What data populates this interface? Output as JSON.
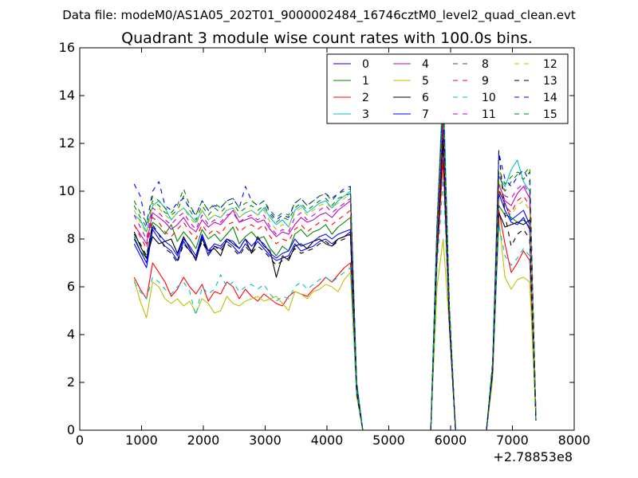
{
  "figure": {
    "suptitle": "Data file: modeM0/AS1A05_202T01_9000002484_16746cztM0_level2_quad_clean.evt"
  },
  "chart_data": {
    "type": "line",
    "title": "Quadrant 3 module wise count rates with 100.0s bins.",
    "xlabel": "",
    "ylabel": "",
    "x_offset_label": "+2.78853e8",
    "xlim": [
      0,
      8000
    ],
    "ylim": [
      0,
      16
    ],
    "xticks": [
      0,
      1000,
      2000,
      3000,
      4000,
      5000,
      6000,
      7000,
      8000
    ],
    "yticks": [
      0,
      2,
      4,
      6,
      8,
      10,
      12,
      14,
      16
    ],
    "legend_position": "top-right",
    "x": [
      880,
      980,
      1080,
      1180,
      1280,
      1380,
      1480,
      1580,
      1680,
      1780,
      1880,
      1980,
      2080,
      2180,
      2280,
      2380,
      2480,
      2580,
      2680,
      2780,
      2880,
      2980,
      3080,
      3180,
      3280,
      3380,
      3480,
      3580,
      3680,
      3780,
      3880,
      3980,
      4080,
      4180,
      4280,
      4380,
      4480,
      4580,
      4680,
      4780,
      4880,
      4980,
      5080,
      5180,
      5280,
      5380,
      5480,
      5580,
      5680,
      5780,
      5880,
      5980,
      6080,
      6180,
      6280,
      6380,
      6480,
      6580,
      6680,
      6780,
      6880,
      6980,
      7080,
      7180,
      7280,
      7380
    ],
    "series": [
      {
        "name": "0",
        "color": "#0000ff",
        "style": "solid",
        "values": [
          7.8,
          7.3,
          6.8,
          8.4,
          8.0,
          7.7,
          7.5,
          7.1,
          7.9,
          7.5,
          7.2,
          8.1,
          7.3,
          7.7,
          7.6,
          7.9,
          7.7,
          7.4,
          7.8,
          7.5,
          7.9,
          7.6,
          7.3,
          7.1,
          7.2,
          7.3,
          7.8,
          7.5,
          7.6,
          7.7,
          7.9,
          8.0,
          7.8,
          8.0,
          8.1,
          8.2,
          1.6,
          0.0,
          0.0,
          0.0,
          0.0,
          0.0,
          0.0,
          0.0,
          0.0,
          0.0,
          0.0,
          0.0,
          0.0,
          7.5,
          12.5,
          4.5,
          0.0,
          0.0,
          0.0,
          0.0,
          0.0,
          0.0,
          2.5,
          10.0,
          9.5,
          8.8,
          9.0,
          9.2,
          8.6,
          0.5
        ]
      },
      {
        "name": "1",
        "color": "#008000",
        "style": "solid",
        "values": [
          8.1,
          7.5,
          7.2,
          8.7,
          8.5,
          8.2,
          8.6,
          7.9,
          8.3,
          8.0,
          7.6,
          8.4,
          8.0,
          8.2,
          7.9,
          8.2,
          8.5,
          7.8,
          8.1,
          8.3,
          8.0,
          8.1,
          7.6,
          7.3,
          7.7,
          7.5,
          8.2,
          8.4,
          8.1,
          8.3,
          8.4,
          8.6,
          8.2,
          8.5,
          8.7,
          8.9,
          1.7,
          0.0,
          0.0,
          0.0,
          0.0,
          0.0,
          0.0,
          0.0,
          0.0,
          0.0,
          0.0,
          0.0,
          0.0,
          7.7,
          12.6,
          4.6,
          0.0,
          0.0,
          0.0,
          0.0,
          0.0,
          0.0,
          2.6,
          9.4,
          9.0,
          8.9,
          8.7,
          8.8,
          8.5,
          0.6
        ]
      },
      {
        "name": "2",
        "color": "#ff0000",
        "style": "solid",
        "values": [
          6.4,
          5.9,
          5.5,
          7.0,
          6.6,
          6.2,
          5.6,
          5.9,
          6.4,
          6.0,
          5.7,
          6.1,
          5.4,
          5.8,
          5.7,
          6.2,
          6.0,
          5.5,
          5.9,
          5.6,
          5.4,
          5.7,
          5.5,
          5.3,
          5.2,
          5.6,
          5.8,
          5.7,
          5.6,
          5.9,
          6.1,
          6.4,
          6.2,
          6.5,
          6.8,
          7.0,
          1.5,
          0.0,
          0.0,
          0.0,
          0.0,
          0.0,
          0.0,
          0.0,
          0.0,
          0.0,
          0.0,
          0.0,
          0.0,
          7.2,
          11.3,
          4.5,
          0.0,
          0.0,
          0.0,
          0.0,
          0.0,
          0.0,
          2.3,
          9.2,
          7.8,
          6.6,
          7.0,
          7.5,
          7.1,
          0.5
        ]
      },
      {
        "name": "3",
        "color": "#00bfbf",
        "style": "solid",
        "values": [
          9.0,
          8.8,
          8.3,
          9.4,
          9.6,
          9.3,
          8.8,
          9.1,
          9.3,
          9.0,
          8.7,
          9.2,
          8.8,
          9.0,
          8.9,
          9.2,
          9.3,
          8.9,
          9.1,
          9.2,
          9.0,
          9.3,
          8.9,
          8.6,
          8.8,
          8.5,
          9.2,
          9.4,
          9.1,
          9.3,
          9.5,
          9.6,
          9.3,
          9.6,
          9.8,
          10.0,
          2.0,
          0.0,
          0.0,
          0.0,
          0.0,
          0.0,
          0.0,
          0.0,
          0.0,
          0.0,
          0.0,
          0.0,
          0.0,
          8.6,
          14.7,
          5.2,
          0.0,
          0.0,
          0.0,
          0.0,
          0.0,
          0.0,
          2.8,
          10.6,
          10.2,
          10.9,
          11.3,
          10.4,
          10.0,
          0.6
        ]
      },
      {
        "name": "4",
        "color": "#bf00bf",
        "style": "solid",
        "values": [
          8.6,
          8.2,
          7.8,
          9.1,
          8.9,
          8.7,
          8.4,
          8.6,
          8.9,
          8.5,
          8.3,
          8.8,
          8.5,
          8.7,
          8.6,
          8.9,
          9.2,
          8.7,
          8.8,
          8.9,
          8.7,
          8.8,
          8.4,
          8.1,
          8.3,
          8.2,
          8.6,
          8.9,
          8.7,
          8.8,
          9.0,
          9.1,
          8.9,
          9.2,
          9.4,
          9.6,
          1.8,
          0.0,
          0.0,
          0.0,
          0.0,
          0.0,
          0.0,
          0.0,
          0.0,
          0.0,
          0.0,
          0.0,
          0.0,
          8.0,
          13.2,
          4.8,
          0.0,
          0.0,
          0.0,
          0.0,
          0.0,
          0.0,
          2.7,
          10.3,
          9.6,
          9.4,
          9.9,
          10.2,
          9.7,
          0.6
        ]
      },
      {
        "name": "5",
        "color": "#bfbf00",
        "style": "solid",
        "values": [
          6.3,
          5.4,
          4.7,
          6.2,
          6.0,
          5.5,
          5.3,
          5.5,
          5.2,
          5.4,
          4.9,
          5.5,
          5.3,
          4.9,
          5.0,
          5.6,
          5.3,
          5.2,
          5.4,
          5.5,
          5.6,
          5.4,
          5.5,
          5.6,
          5.3,
          5.0,
          5.8,
          5.7,
          5.5,
          5.8,
          5.9,
          6.1,
          6.0,
          5.8,
          6.3,
          6.6,
          1.4,
          0.0,
          0.0,
          0.0,
          0.0,
          0.0,
          0.0,
          0.0,
          0.0,
          0.0,
          0.0,
          0.0,
          0.0,
          6.0,
          8.0,
          4.3,
          0.0,
          0.0,
          0.0,
          0.0,
          0.0,
          0.0,
          2.1,
          8.8,
          6.4,
          5.9,
          6.3,
          6.4,
          6.2,
          0.5
        ]
      },
      {
        "name": "6",
        "color": "#000000",
        "style": "solid",
        "values": [
          8.3,
          7.7,
          7.2,
          8.1,
          7.8,
          7.9,
          8.0,
          7.4,
          8.1,
          7.6,
          7.1,
          8.0,
          7.5,
          7.6,
          7.3,
          8.0,
          7.8,
          7.6,
          8.0,
          7.4,
          8.1,
          7.7,
          7.5,
          6.4,
          7.3,
          7.1,
          7.7,
          7.8,
          7.6,
          7.9,
          8.0,
          7.8,
          7.7,
          8.0,
          8.1,
          8.3,
          1.6,
          0.0,
          0.0,
          0.0,
          0.0,
          0.0,
          0.0,
          0.0,
          0.0,
          0.0,
          0.0,
          0.0,
          0.0,
          7.6,
          12.0,
          4.4,
          0.0,
          0.0,
          0.0,
          0.0,
          0.0,
          0.0,
          2.4,
          9.1,
          8.5,
          8.6,
          8.7,
          8.6,
          8.8,
          0.4
        ]
      },
      {
        "name": "7",
        "color": "#0000ff",
        "style": "solid",
        "values": [
          8.0,
          7.5,
          7.0,
          8.5,
          8.2,
          7.9,
          7.7,
          7.3,
          8.0,
          7.7,
          7.3,
          8.2,
          7.5,
          7.8,
          7.7,
          8.0,
          7.9,
          7.6,
          8.0,
          7.7,
          8.0,
          7.8,
          7.4,
          7.2,
          7.4,
          7.5,
          8.0,
          7.7,
          7.8,
          7.9,
          8.1,
          8.2,
          8.0,
          8.2,
          8.3,
          8.4,
          1.7,
          0.0,
          0.0,
          0.0,
          0.0,
          0.0,
          0.0,
          0.0,
          0.0,
          0.0,
          0.0,
          0.0,
          0.0,
          7.7,
          12.7,
          4.6,
          0.0,
          0.0,
          0.0,
          0.0,
          0.0,
          0.0,
          2.6,
          9.9,
          9.2,
          8.7,
          8.6,
          8.9,
          8.4,
          0.5
        ]
      },
      {
        "name": "8",
        "color": "#008000",
        "style": "dashed",
        "values": [
          9.4,
          8.9,
          8.5,
          9.6,
          9.4,
          9.1,
          9.0,
          9.2,
          9.8,
          9.2,
          8.8,
          9.4,
          9.0,
          9.3,
          9.1,
          9.4,
          9.5,
          9.1,
          9.3,
          9.4,
          9.2,
          9.4,
          9.0,
          8.7,
          8.9,
          8.8,
          9.3,
          9.5,
          9.2,
          9.4,
          9.6,
          9.7,
          9.4,
          9.7,
          9.8,
          9.9,
          1.9,
          0.0,
          0.0,
          0.0,
          0.0,
          0.0,
          0.0,
          0.0,
          0.0,
          0.0,
          0.0,
          0.0,
          0.0,
          8.5,
          14.0,
          5.1,
          0.0,
          0.0,
          0.0,
          0.0,
          0.0,
          0.0,
          2.8,
          10.7,
          10.0,
          10.4,
          10.7,
          10.5,
          10.8,
          0.6
        ]
      },
      {
        "name": "9",
        "color": "#ff0000",
        "style": "dashed",
        "values": [
          8.6,
          8.1,
          7.6,
          8.9,
          8.7,
          8.3,
          8.1,
          8.4,
          8.7,
          8.3,
          8.0,
          8.6,
          8.2,
          8.4,
          8.2,
          8.6,
          8.7,
          8.3,
          8.5,
          8.6,
          8.4,
          8.6,
          8.1,
          7.8,
          8.0,
          7.9,
          8.4,
          8.6,
          8.3,
          8.5,
          8.7,
          8.8,
          8.6,
          8.8,
          9.0,
          9.2,
          1.7,
          0.0,
          0.0,
          0.0,
          0.0,
          0.0,
          0.0,
          0.0,
          0.0,
          0.0,
          0.0,
          0.0,
          0.0,
          7.9,
          12.9,
          4.7,
          0.0,
          0.0,
          0.0,
          0.0,
          0.0,
          0.0,
          2.6,
          10.1,
          9.4,
          9.1,
          9.6,
          9.8,
          9.4,
          0.5
        ]
      },
      {
        "name": "10",
        "color": "#00bfbf",
        "style": "dashed",
        "values": [
          6.2,
          5.8,
          5.5,
          6.4,
          6.2,
          5.9,
          5.7,
          6.0,
          6.2,
          5.8,
          4.8,
          6.0,
          5.7,
          5.9,
          6.5,
          6.0,
          6.2,
          5.8,
          6.0,
          6.1,
          5.9,
          6.1,
          5.7,
          5.4,
          5.6,
          5.5,
          6.0,
          6.2,
          5.9,
          6.1,
          6.3,
          6.4,
          6.2,
          6.4,
          6.6,
          6.8,
          1.5,
          0.0,
          0.0,
          0.0,
          0.0,
          0.0,
          0.0,
          0.0,
          0.0,
          0.0,
          0.0,
          0.0,
          0.0,
          6.8,
          10.5,
          4.6,
          0.0,
          0.0,
          0.0,
          0.0,
          0.0,
          0.0,
          2.3,
          8.6,
          7.3,
          6.9,
          7.2,
          7.6,
          7.3,
          0.5
        ]
      },
      {
        "name": "11",
        "color": "#bf00bf",
        "style": "dashed",
        "values": [
          9.0,
          8.5,
          8.0,
          9.3,
          9.1,
          8.8,
          8.6,
          8.9,
          9.1,
          8.7,
          8.4,
          9.0,
          8.6,
          8.8,
          8.7,
          9.0,
          9.1,
          8.7,
          8.9,
          9.0,
          8.8,
          9.0,
          8.5,
          8.2,
          8.4,
          8.3,
          8.9,
          9.1,
          8.8,
          9.0,
          9.2,
          9.4,
          9.1,
          9.3,
          9.5,
          9.7,
          1.8,
          0.0,
          0.0,
          0.0,
          0.0,
          0.0,
          0.0,
          0.0,
          0.0,
          0.0,
          0.0,
          0.0,
          0.0,
          8.2,
          13.5,
          4.9,
          0.0,
          0.0,
          0.0,
          0.0,
          0.0,
          0.0,
          2.7,
          10.8,
          9.8,
          9.7,
          10.1,
          10.3,
          9.9,
          0.6
        ]
      },
      {
        "name": "12",
        "color": "#bfbf00",
        "style": "dashed",
        "values": [
          9.2,
          8.7,
          8.2,
          9.5,
          9.3,
          9.0,
          8.8,
          9.1,
          9.3,
          8.9,
          8.6,
          9.2,
          8.8,
          9.0,
          8.9,
          9.2,
          9.3,
          8.9,
          9.1,
          9.2,
          9.0,
          9.2,
          8.7,
          8.4,
          8.6,
          8.5,
          9.1,
          9.3,
          9.0,
          9.2,
          9.4,
          9.5,
          9.3,
          9.5,
          9.7,
          9.9,
          1.9,
          0.0,
          0.0,
          0.0,
          0.0,
          0.0,
          0.0,
          0.0,
          0.0,
          0.0,
          0.0,
          0.0,
          0.0,
          8.3,
          13.8,
          5.0,
          0.0,
          0.0,
          0.0,
          0.0,
          0.0,
          0.0,
          2.7,
          10.5,
          9.3,
          9.0,
          9.4,
          9.6,
          9.2,
          0.6
        ]
      },
      {
        "name": "13",
        "color": "#000000",
        "style": "dashed",
        "values": [
          8.2,
          7.8,
          7.3,
          8.6,
          8.2,
          7.6,
          7.4,
          7.0,
          7.8,
          7.5,
          7.2,
          7.9,
          7.4,
          7.7,
          7.5,
          7.8,
          7.6,
          7.3,
          7.7,
          7.4,
          7.7,
          7.5,
          7.2,
          6.9,
          7.1,
          7.2,
          7.6,
          7.4,
          7.5,
          7.6,
          7.8,
          7.9,
          7.7,
          7.9,
          8.0,
          8.2,
          1.6,
          0.0,
          0.0,
          0.0,
          0.0,
          0.0,
          0.0,
          0.0,
          0.0,
          0.0,
          0.0,
          0.0,
          0.0,
          7.4,
          12.2,
          4.4,
          0.0,
          0.0,
          0.0,
          0.0,
          0.0,
          0.0,
          2.5,
          11.7,
          9.0,
          7.7,
          8.2,
          8.4,
          8.0,
          0.4
        ]
      },
      {
        "name": "14",
        "color": "#0000ff",
        "style": "dashed",
        "values": [
          10.3,
          9.8,
          8.6,
          10.0,
          10.4,
          9.4,
          9.2,
          9.5,
          9.7,
          9.3,
          9.0,
          9.6,
          9.2,
          9.4,
          9.3,
          9.6,
          9.7,
          9.3,
          10.2,
          9.6,
          9.4,
          9.6,
          9.1,
          8.8,
          9.0,
          8.9,
          9.5,
          9.7,
          9.4,
          9.6,
          9.8,
          9.9,
          9.7,
          9.9,
          10.1,
          10.2,
          2.0,
          0.0,
          0.0,
          0.0,
          0.0,
          0.0,
          0.0,
          0.0,
          0.0,
          0.0,
          0.0,
          0.0,
          0.0,
          8.7,
          13.9,
          5.1,
          0.0,
          0.0,
          0.0,
          0.0,
          0.0,
          0.0,
          2.8,
          11.6,
          10.5,
          10.2,
          10.6,
          10.9,
          10.4,
          0.6
        ]
      },
      {
        "name": "15",
        "color": "#008000",
        "style": "dashed",
        "values": [
          9.6,
          9.1,
          8.7,
          9.8,
          9.6,
          9.3,
          9.1,
          9.4,
          10.1,
          9.4,
          9.0,
          9.6,
          9.2,
          9.5,
          9.3,
          9.6,
          9.7,
          9.3,
          9.5,
          9.6,
          9.4,
          9.6,
          9.2,
          8.9,
          9.1,
          9.0,
          9.5,
          9.7,
          9.4,
          9.6,
          9.8,
          9.9,
          9.6,
          9.9,
          10.0,
          10.1,
          2.0,
          0.0,
          0.0,
          0.0,
          0.0,
          0.0,
          0.0,
          0.0,
          0.0,
          0.0,
          0.0,
          0.0,
          0.0,
          8.6,
          14.1,
          5.2,
          0.0,
          0.0,
          0.0,
          0.0,
          0.0,
          0.0,
          2.8,
          10.9,
          10.3,
          10.6,
          10.8,
          10.7,
          11.0,
          0.6
        ]
      }
    ]
  }
}
